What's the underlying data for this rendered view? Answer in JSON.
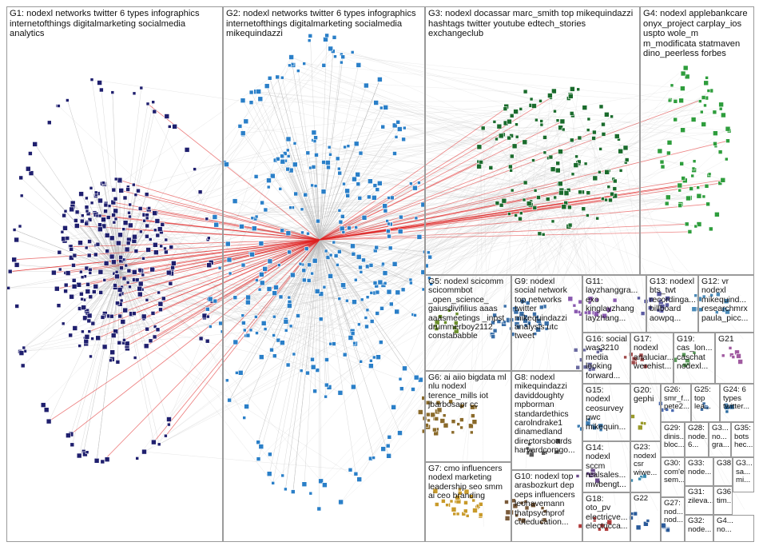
{
  "graph": {
    "label_color": "#111111",
    "border_color": "#9a9a9a",
    "edge_color": "#b9b9b9",
    "highlight_edge_color": "#e02020",
    "groups": [
      {
        "id": "G1",
        "label": "G1: nodexl networks twitter 6 types infographics\ninternetofthings digitalmarketing socialmedia\nanalytics",
        "color": "#1f1f6e"
      },
      {
        "id": "G2",
        "label": "G2: nodexl networks twitter 6 types infographics\ninternetofthings digitalmarketing socialmedia\nmikequindazzi",
        "color": "#2a7fc8"
      },
      {
        "id": "G3",
        "label": "G3: nodexl docassar marc_smith top mikequindazzi\nhashtags twitter youtube edtech_stories\nexchangeclub",
        "color": "#1a6b2c"
      },
      {
        "id": "G4",
        "label": "G4: nodexl applebankcare\nonyx_project carplay_ios\nuspto wole_m\nm_modificata statmaven\ndino_peerless forbes",
        "color": "#2e9d3c"
      },
      {
        "id": "G5",
        "label": "G5: nodexl scicomm\nscicommbot\n_open_science_\ngaiusdivifilius aaas\naaasmeetings _inpst\ndrummerboy2112\nconstababble",
        "color": "#6b8f2a"
      },
      {
        "id": "G9",
        "label": "G9: nodexl\nsocial network\ntop networks\ntwitter\nmikequindazzi\nanalysis utc\ntweet",
        "color": "#3a6fa8"
      },
      {
        "id": "G11",
        "label": "G11:\nlayzhanggra...\nexo\nkinglayzhang\nlayzhang...",
        "color": "#8a5ab0"
      },
      {
        "id": "G13",
        "label": "G13: nodexl\nbts_twt\nrecordinga...\nbillboard\naowpq...",
        "color": "#5a5aa0"
      },
      {
        "id": "G12",
        "label": "G12: vr\nnodexl\nmikequind...\nresearchmrx\npaula_picc...",
        "color": "#4a8ab8"
      },
      {
        "id": "G6",
        "label": "G6: ai aiio bigdata ml\nnlu nodexl\nterence_mills iot\njbarbosapr cc",
        "color": "#8a6a2a"
      },
      {
        "id": "G8",
        "label": "G8: nodexl\nmikequindazzi\ndaviddoughty\nmpborman\nstandardethics\ncarolndrake1\ndinamedland\ndirectorsboards\nharvardcorpgo...",
        "color": "#5a5a5a"
      },
      {
        "id": "G16",
        "label": "G16: social\nwas3210\nmedia\nlooking\nforward...",
        "color": "#6a6aa0"
      },
      {
        "id": "G17",
        "label": "G17:\nnodexl\nanaluciar...\nwerehist...",
        "color": "#a04a4a"
      },
      {
        "id": "G19",
        "label": "G19:\ncas_lon...\ncaschat\nnodexl...",
        "color": "#5a9a5a"
      },
      {
        "id": "G21",
        "label": "G21",
        "color": "#a05aa0"
      },
      {
        "id": "G15",
        "label": "G15:\nnodexl\nceosurvey\npwc\nmikequin...",
        "color": "#3a7ab0"
      },
      {
        "id": "G20",
        "label": "G20:\ngephi",
        "color": "#9a9a2a"
      },
      {
        "id": "G26",
        "label": "G26:\nsmr_f...\npete2...",
        "color": "#4a6ab0"
      },
      {
        "id": "G25",
        "label": "G25:\ntop\nlea...",
        "color": "#3a6aa0"
      },
      {
        "id": "G24",
        "label": "G24: 6\ntypes\ntwitter...",
        "color": "#2a6aa0"
      },
      {
        "id": "G14",
        "label": "G14:\nnodexl\nsccm\nrealsales...\nmwbengt...",
        "color": "#6a4a8a"
      },
      {
        "id": "G23",
        "label": "G23:\nnodexl\ncsr\nwiwe...",
        "color": "#3a8ab0"
      },
      {
        "id": "G29",
        "label": "G29:\ndinis...\nbloc...",
        "color": "#2a5a9a"
      },
      {
        "id": "G28",
        "label": "G28:\nnode...\n6...",
        "color": "#2a5a9a"
      },
      {
        "id": "G3b",
        "label": "G3...\nno...\ngra...",
        "color": "#2a5a9a"
      },
      {
        "id": "G35",
        "label": "G35:\nbots\nhec...",
        "color": "#2a5a9a"
      },
      {
        "id": "G7",
        "label": "G7: cmo influencers\nnodexl marketing\nleadership seo smm\nai ceo branding",
        "color": "#c89a2a"
      },
      {
        "id": "G10",
        "label": "G10: nodexl top\narasbozkurt dep\noeps influencers\nleohavemann\nthatpsychprof\ncoteducation...",
        "color": "#7a5a3a"
      },
      {
        "id": "G18",
        "label": "G18:\noto_pv\nelectricve...\nelectricca...",
        "color": "#b03a3a"
      },
      {
        "id": "G30",
        "label": "G30:\ncom'e...\nsem...",
        "color": "#2a5a9a"
      },
      {
        "id": "G33",
        "label": "G33:\nnode...",
        "color": "#2a5a9a"
      },
      {
        "id": "G38",
        "label": "G38",
        "color": "#2a5a9a"
      },
      {
        "id": "G3c",
        "label": "G3...\nsa...\nmi...",
        "color": "#2a5a9a"
      },
      {
        "id": "G31",
        "label": "G31:\nzileva...",
        "color": "#2a5a9a"
      },
      {
        "id": "G36",
        "label": "G36:\ntim...",
        "color": "#2a5a9a"
      },
      {
        "id": "G22",
        "label": "G22",
        "color": "#2a5a9a"
      },
      {
        "id": "G27",
        "label": "G27:\nnod...\nnod...",
        "color": "#2a5a9a"
      },
      {
        "id": "G32",
        "label": "G32:\nnode...",
        "color": "#2a5a9a"
      },
      {
        "id": "G4b",
        "label": "G4...\nno...",
        "color": "#2a5a9a"
      }
    ]
  }
}
